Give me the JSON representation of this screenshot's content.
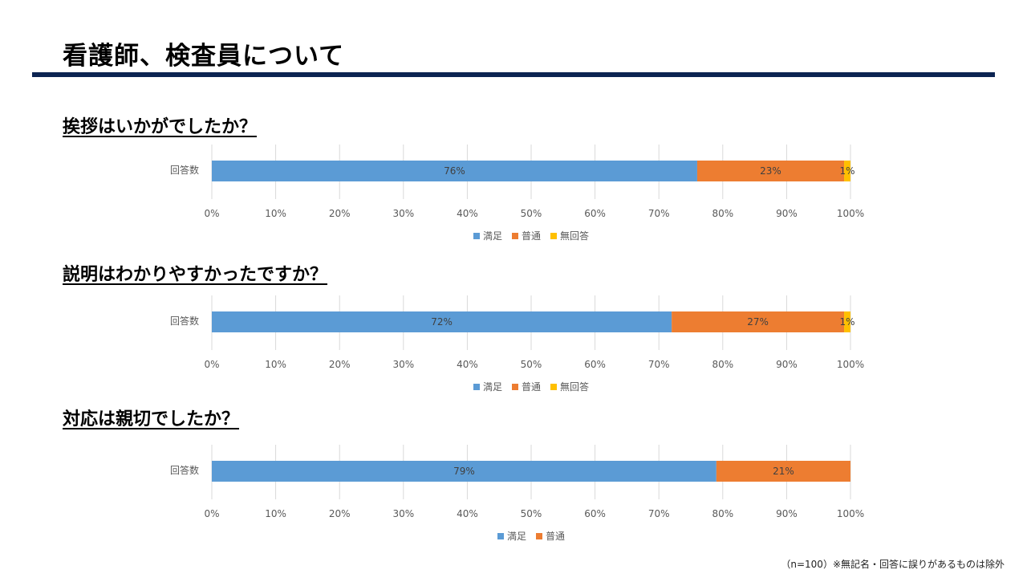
{
  "page": {
    "title": "看護師、検査員について",
    "footer_note": "（n=100）※無記名・回答に誤りがあるものは除外"
  },
  "colors": {
    "satisfied": "#5b9bd5",
    "normal": "#ed7d31",
    "no_answer": "#ffc000",
    "title_rule": "#0c2452",
    "gridline": "#d9d9d9",
    "tick_text": "#595959",
    "data_label": "#404040"
  },
  "chart_data": [
    {
      "type": "bar",
      "orientation": "horizontal",
      "stacked": true,
      "percent_stacked": true,
      "title": "挨拶はいかがでしたか？",
      "categories": [
        "回答数"
      ],
      "series": [
        {
          "name": "満足",
          "values": [
            76
          ],
          "label": "76%",
          "color": "#5b9bd5"
        },
        {
          "name": "普通",
          "values": [
            23
          ],
          "label": "23%",
          "color": "#ed7d31"
        },
        {
          "name": "無回答",
          "values": [
            1
          ],
          "label": "1%",
          "color": "#ffc000"
        }
      ],
      "xlim": [
        0,
        100
      ],
      "xticks": [
        "0%",
        "10%",
        "20%",
        "30%",
        "40%",
        "50%",
        "60%",
        "70%",
        "80%",
        "90%",
        "100%"
      ],
      "grid": true,
      "legend": "bottom"
    },
    {
      "type": "bar",
      "orientation": "horizontal",
      "stacked": true,
      "percent_stacked": true,
      "title": "説明はわかりやすかったですか？",
      "categories": [
        "回答数"
      ],
      "series": [
        {
          "name": "満足",
          "values": [
            72
          ],
          "label": "72%",
          "color": "#5b9bd5"
        },
        {
          "name": "普通",
          "values": [
            27
          ],
          "label": "27%",
          "color": "#ed7d31"
        },
        {
          "name": "無回答",
          "values": [
            1
          ],
          "label": "1%",
          "color": "#ffc000"
        }
      ],
      "xlim": [
        0,
        100
      ],
      "xticks": [
        "0%",
        "10%",
        "20%",
        "30%",
        "40%",
        "50%",
        "60%",
        "70%",
        "80%",
        "90%",
        "100%"
      ],
      "grid": true,
      "legend": "bottom"
    },
    {
      "type": "bar",
      "orientation": "horizontal",
      "stacked": true,
      "percent_stacked": true,
      "title": "対応は親切でしたか？",
      "categories": [
        "回答数"
      ],
      "series": [
        {
          "name": "満足",
          "values": [
            79
          ],
          "label": "79%",
          "color": "#5b9bd5"
        },
        {
          "name": "普通",
          "values": [
            21
          ],
          "label": "21%",
          "color": "#ed7d31"
        }
      ],
      "xlim": [
        0,
        100
      ],
      "xticks": [
        "0%",
        "10%",
        "20%",
        "30%",
        "40%",
        "50%",
        "60%",
        "70%",
        "80%",
        "90%",
        "100%"
      ],
      "grid": true,
      "legend": "bottom"
    }
  ]
}
